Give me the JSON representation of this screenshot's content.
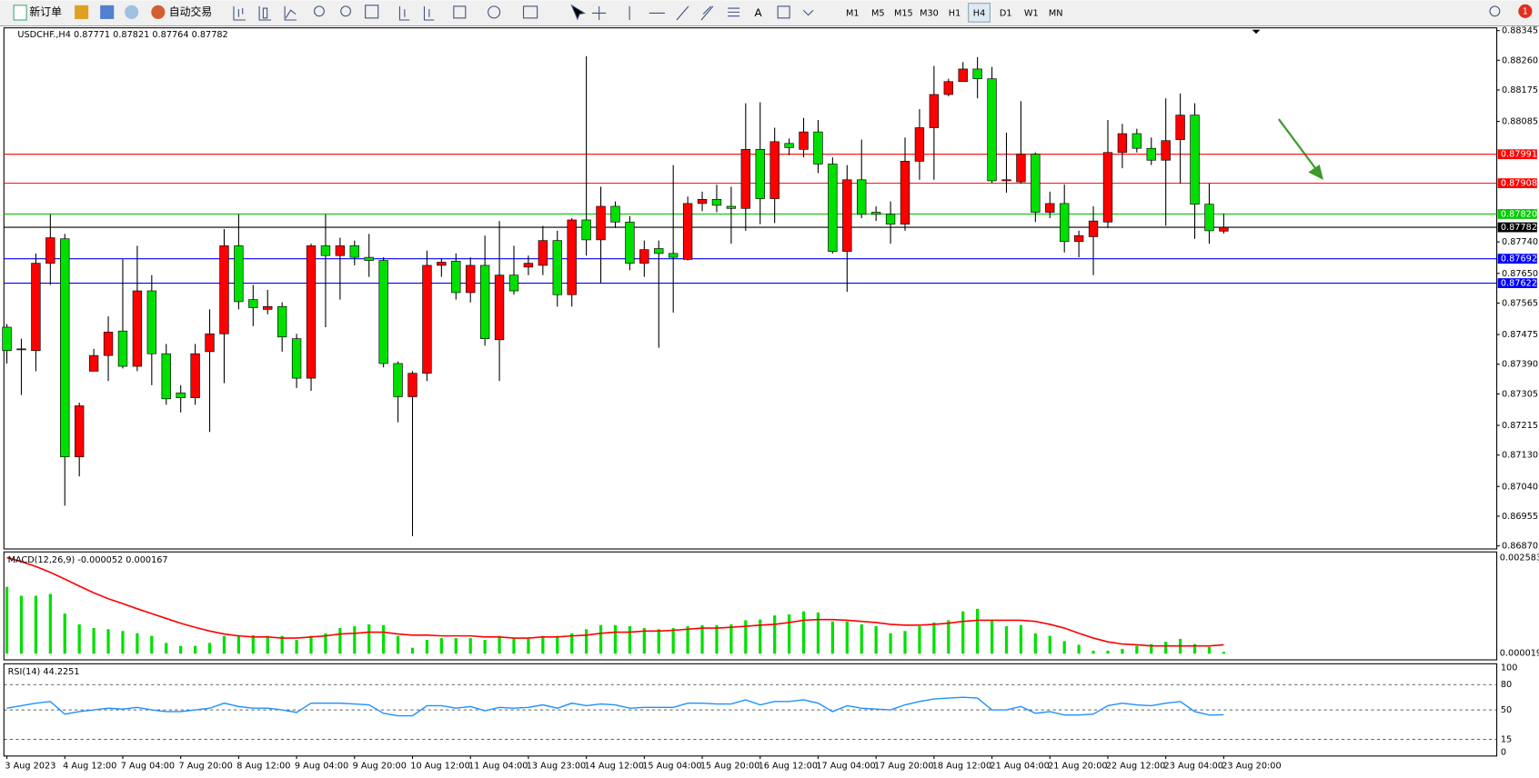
{
  "toolbar": {
    "new_order": "新订单",
    "auto_trading": "自动交易",
    "text_tool": "A",
    "timeframes": [
      "M1",
      "M5",
      "M15",
      "M30",
      "H1",
      "H4",
      "D1",
      "W1",
      "MN"
    ],
    "active_timeframe": 5,
    "notifications": 1
  },
  "chart_data": [
    {
      "type": "candlestick",
      "title": "USDCHF.,H4  0.87771 0.87821 0.87764 0.87782",
      "up_color": "#ff0000",
      "down_color": "#00e000",
      "wick_color": "#000000",
      "ylim": [
        0.86864,
        0.8835
      ],
      "yticks": [
        0.88345,
        {
          "value": 0.8826,
          "label": "0.88260"
        },
        0.88175,
        0.88085,
        {
          "value": 0.8774,
          "label": "0.87740"
        },
        {
          "value": 0.8765,
          "label": "0.87650"
        },
        0.87565,
        0.87475,
        {
          "value": 0.8739,
          "label": "0.87390"
        },
        0.87305,
        0.87215,
        {
          "value": 0.8713,
          "label": "0.87130"
        },
        {
          "value": 0.8704,
          "label": "0.87040"
        },
        0.86955,
        {
          "value": 0.8687,
          "label": "0.86870"
        }
      ],
      "levels": [
        {
          "value": 0.87991,
          "color": "#ff0000"
        },
        {
          "value": 0.87908,
          "color": "#ff0000"
        },
        {
          "value": 0.8782,
          "label": "0.87820",
          "color": "#00cc00"
        },
        {
          "value": 0.87782,
          "color": "#000000"
        },
        {
          "value": 0.87692,
          "color": "#0000ff"
        },
        {
          "value": 0.87622,
          "color": "#0000ff"
        }
      ],
      "categories": [
        "3 Aug 2023",
        null,
        null,
        null,
        "4 Aug 12:00",
        null,
        null,
        null,
        "7 Aug 04:00",
        null,
        null,
        null,
        "7 Aug 20:00",
        null,
        null,
        null,
        "8 Aug 12:00",
        null,
        null,
        null,
        "9 Aug 04:00",
        null,
        null,
        null,
        "9 Aug 20:00",
        null,
        null,
        null,
        "10 Aug 12:00",
        null,
        null,
        null,
        "11 Aug 04:00",
        null,
        null,
        null,
        "13 Aug 23:00",
        null,
        null,
        null,
        "14 Aug 12:00",
        null,
        null,
        null,
        "15 Aug 04:00",
        null,
        null,
        null,
        "15 Aug 20:00",
        null,
        null,
        null,
        "16 Aug 12:00",
        null,
        null,
        null,
        "17 Aug 04:00",
        null,
        null,
        null,
        "17 Aug 20:00",
        null,
        null,
        null,
        "18 Aug 12:00",
        null,
        null,
        null,
        "21 Aug 04:00",
        null,
        null,
        null,
        "21 Aug 20:00",
        null,
        null,
        null,
        "22 Aug 12:00",
        null,
        null,
        null,
        "23 Aug 04:00",
        null,
        null,
        null,
        "23 Aug 20:00"
      ],
      "ohlc": [
        [
          0.87496,
          0.87505,
          0.87392,
          0.87429
        ],
        [
          0.87434,
          0.87463,
          0.87302,
          0.87434
        ],
        [
          0.87429,
          0.87707,
          0.8737,
          0.87679
        ],
        [
          0.87679,
          0.87819,
          0.87617,
          0.87752
        ],
        [
          0.87749,
          0.87763,
          0.86985,
          0.87125
        ],
        [
          0.87125,
          0.8728,
          0.87069,
          0.87271
        ],
        [
          0.8737,
          0.87434,
          0.8737,
          0.87415
        ],
        [
          0.87415,
          0.87527,
          0.87342,
          0.87482
        ],
        [
          0.87485,
          0.8769,
          0.87378,
          0.87384
        ],
        [
          0.87384,
          0.87729,
          0.8737,
          0.876
        ],
        [
          0.876,
          0.87645,
          0.8733,
          0.8742
        ],
        [
          0.8742,
          0.87448,
          0.87274,
          0.87291
        ],
        [
          0.87308,
          0.8733,
          0.87252,
          0.87294
        ],
        [
          0.87294,
          0.87448,
          0.87274,
          0.8742
        ],
        [
          0.87426,
          0.87547,
          0.87196,
          0.87477
        ],
        [
          0.87477,
          0.87777,
          0.87336,
          0.87729
        ],
        [
          0.87729,
          0.87819,
          0.87547,
          0.87569
        ],
        [
          0.87575,
          0.87617,
          0.87499,
          0.87552
        ],
        [
          0.87547,
          0.87603,
          0.87533,
          0.87555
        ],
        [
          0.87555,
          0.87567,
          0.87426,
          0.87468
        ],
        [
          0.87463,
          0.87477,
          0.87322,
          0.8735
        ],
        [
          0.8735,
          0.87735,
          0.87314,
          0.87729
        ],
        [
          0.87729,
          0.87819,
          0.87496,
          0.87701
        ],
        [
          0.87701,
          0.87752,
          0.87575,
          0.87729
        ],
        [
          0.87729,
          0.87744,
          0.87673,
          0.87696
        ],
        [
          0.87696,
          0.87763,
          0.8764,
          0.87687
        ],
        [
          0.87687,
          0.87696,
          0.87381,
          0.87392
        ],
        [
          0.87392,
          0.87398,
          0.87224,
          0.87297
        ],
        [
          0.87297,
          0.8737,
          0.86898,
          0.87364
        ],
        [
          0.87364,
          0.87715,
          0.87342,
          0.87673
        ],
        [
          0.87673,
          0.87693,
          0.8764,
          0.87682
        ],
        [
          0.87685,
          0.87707,
          0.87575,
          0.87595
        ],
        [
          0.87595,
          0.87696,
          0.87567,
          0.87673
        ],
        [
          0.87673,
          0.87758,
          0.87443,
          0.87463
        ],
        [
          0.8746,
          0.878,
          0.87342,
          0.87645
        ],
        [
          0.87645,
          0.87729,
          0.87589,
          0.876
        ],
        [
          0.87668,
          0.87701,
          0.87645,
          0.87679
        ],
        [
          0.87673,
          0.87786,
          0.87645,
          0.87744
        ],
        [
          0.87744,
          0.87772,
          0.87555,
          0.87589
        ],
        [
          0.87589,
          0.87808,
          0.87555,
          0.87803
        ],
        [
          0.87803,
          0.88272,
          0.87701,
          0.87746
        ],
        [
          0.87746,
          0.87898,
          0.87623,
          0.87842
        ],
        [
          0.87842,
          0.87856,
          0.8778,
          0.87797
        ],
        [
          0.87797,
          0.87814,
          0.87659,
          0.87679
        ],
        [
          0.87679,
          0.87744,
          0.8764,
          0.87718
        ],
        [
          0.87721,
          0.87744,
          0.87437,
          0.87707
        ],
        [
          0.87707,
          0.8796,
          0.87538,
          0.87696
        ],
        [
          0.8769,
          0.8787,
          0.87687,
          0.8785
        ],
        [
          0.8785,
          0.87884,
          0.87828,
          0.87862
        ],
        [
          0.87862,
          0.87904,
          0.87825,
          0.87845
        ],
        [
          0.87842,
          0.87898,
          0.87735,
          0.87836
        ],
        [
          0.87836,
          0.88137,
          0.87772,
          0.88005
        ],
        [
          0.88005,
          0.8814,
          0.87791,
          0.87864
        ],
        [
          0.87864,
          0.88067,
          0.87794,
          0.88027
        ],
        [
          0.88022,
          0.88036,
          0.87988,
          0.8801
        ],
        [
          0.88005,
          0.88095,
          0.87982,
          0.88055
        ],
        [
          0.88055,
          0.88089,
          0.87937,
          0.87963
        ],
        [
          0.87963,
          0.87982,
          0.87707,
          0.87713
        ],
        [
          0.87713,
          0.8796,
          0.87597,
          0.87918
        ],
        [
          0.87918,
          0.88033,
          0.87808,
          0.87819
        ],
        [
          0.87825,
          0.87842,
          0.878,
          0.87819
        ],
        [
          0.87819,
          0.87856,
          0.87735,
          0.87791
        ],
        [
          0.87791,
          0.88039,
          0.87772,
          0.87971
        ],
        [
          0.87971,
          0.8812,
          0.87918,
          0.88067
        ],
        [
          0.88067,
          0.88244,
          0.87918,
          0.88162
        ],
        [
          0.88162,
          0.88207,
          0.88157,
          0.88199
        ],
        [
          0.88199,
          0.88255,
          0.88199,
          0.88235
        ],
        [
          0.88235,
          0.88269,
          0.88151,
          0.88207
        ],
        [
          0.88207,
          0.88241,
          0.87909,
          0.87915
        ],
        [
          0.87915,
          0.88053,
          0.87881,
          0.87918
        ],
        [
          0.87912,
          0.88143,
          0.87907,
          0.87991
        ],
        [
          0.87991,
          0.87996,
          0.87797,
          0.87825
        ],
        [
          0.87825,
          0.87884,
          0.87808,
          0.8785
        ],
        [
          0.8785,
          0.87904,
          0.8771,
          0.87741
        ],
        [
          0.87741,
          0.87772,
          0.87696,
          0.87758
        ],
        [
          0.87755,
          0.87842,
          0.87645,
          0.878
        ],
        [
          0.87797,
          0.88089,
          0.8778,
          0.87996
        ],
        [
          0.87996,
          0.88078,
          0.87951,
          0.8805
        ],
        [
          0.8805,
          0.88064,
          0.87996,
          0.88008
        ],
        [
          0.88008,
          0.88039,
          0.8796,
          0.87974
        ],
        [
          0.87974,
          0.88151,
          0.87786,
          0.8803
        ],
        [
          0.88033,
          0.88165,
          0.87907,
          0.88103
        ],
        [
          0.88103,
          0.88137,
          0.87749,
          0.87848
        ],
        [
          0.87848,
          0.87907,
          0.87735,
          0.87772
        ],
        [
          0.87771,
          0.87821,
          0.87764,
          0.87782
        ]
      ]
    },
    {
      "type": "macd",
      "title": "MACD(12,26,9) -0.000052 0.000167",
      "ylim": [
        1.9e-05,
        0.002583
      ],
      "yticks": [
        0.002583,
        1.9e-05
      ],
      "series": [
        {
          "kind": "histogram",
          "color": "#00e000",
          "values": [
            0.0018,
            0.00156,
            0.00156,
            0.00161,
            0.00108,
            0.00079,
            0.00069,
            0.00066,
            0.00061,
            0.00055,
            0.00048,
            0.00029,
            0.00021,
            0.00021,
            0.00029,
            0.00048,
            0.0005,
            0.0005,
            0.00048,
            0.00048,
            0.00037,
            0.00048,
            0.00055,
            0.00069,
            0.00074,
            0.00079,
            0.00077,
            0.00048,
            0.00016,
            0.00037,
            0.00042,
            0.00042,
            0.00042,
            0.00037,
            0.00048,
            0.00042,
            0.00042,
            0.00048,
            0.00048,
            0.00055,
            0.00066,
            0.00077,
            0.00077,
            0.00074,
            0.00069,
            0.00066,
            0.00069,
            0.00074,
            0.00077,
            0.00077,
            0.00079,
            0.0009,
            0.00092,
            0.00103,
            0.00106,
            0.00114,
            0.00111,
            0.00087,
            0.00087,
            0.00079,
            0.00074,
            0.00055,
            0.00061,
            0.00074,
            0.00084,
            0.0009,
            0.00114,
            0.00121,
            0.0009,
            0.00074,
            0.00077,
            0.00055,
            0.00048,
            0.00034,
            0.00024,
            8e-05,
            8e-05,
            0.00013,
            0.00021,
            0.00026,
            0.00032,
            0.0004,
            0.00026,
            0.00018,
            5e-05
          ]
        },
        {
          "kind": "line",
          "color": "#ff0000",
          "values": [
            0.00259,
            0.00248,
            0.00235,
            0.00219,
            0.00201,
            0.00182,
            0.00164,
            0.00148,
            0.00135,
            0.00121,
            0.00108,
            0.00095,
            0.00082,
            0.00071,
            0.00061,
            0.00053,
            0.00048,
            0.00045,
            0.00045,
            0.00042,
            0.00042,
            0.00045,
            0.00048,
            0.00053,
            0.00055,
            0.00058,
            0.00058,
            0.00053,
            0.0005,
            0.0005,
            0.00048,
            0.00048,
            0.00048,
            0.00045,
            0.00045,
            0.00042,
            0.00042,
            0.00045,
            0.00045,
            0.00048,
            0.0005,
            0.00055,
            0.00058,
            0.00058,
            0.00061,
            0.00061,
            0.00063,
            0.00066,
            0.00069,
            0.00069,
            0.00071,
            0.00074,
            0.00077,
            0.00079,
            0.00084,
            0.0009,
            0.00092,
            0.00092,
            0.0009,
            0.00087,
            0.00084,
            0.00079,
            0.00077,
            0.00077,
            0.00079,
            0.00082,
            0.00087,
            0.0009,
            0.0009,
            0.0009,
            0.0009,
            0.00087,
            0.00079,
            0.00069,
            0.00055,
            0.00042,
            0.00032,
            0.00026,
            0.00024,
            0.00021,
            0.00021,
            0.00021,
            0.00021,
            0.00021,
            0.00024
          ]
        }
      ]
    },
    {
      "type": "line",
      "title": "RSI(14) 44.2251",
      "ylim": [
        0,
        100
      ],
      "yticks": [
        100,
        80,
        50,
        15,
        0
      ],
      "level_lines": [
        80,
        50,
        15
      ],
      "color": "#1e90ff",
      "values": [
        52,
        55,
        58,
        60,
        45,
        48,
        50,
        52,
        51,
        53,
        50,
        48,
        48,
        50,
        52,
        58,
        54,
        52,
        52,
        50,
        47,
        58,
        58,
        58,
        57,
        56,
        46,
        43,
        43,
        55,
        55,
        52,
        54,
        49,
        53,
        52,
        53,
        56,
        52,
        58,
        55,
        57,
        56,
        52,
        53,
        53,
        53,
        58,
        58,
        57,
        57,
        62,
        56,
        60,
        60,
        62,
        58,
        48,
        55,
        52,
        51,
        50,
        56,
        60,
        63,
        64,
        65,
        64,
        50,
        50,
        54,
        46,
        48,
        44,
        44,
        45,
        55,
        58,
        56,
        55,
        58,
        60,
        48,
        44,
        44.2251
      ]
    }
  ]
}
